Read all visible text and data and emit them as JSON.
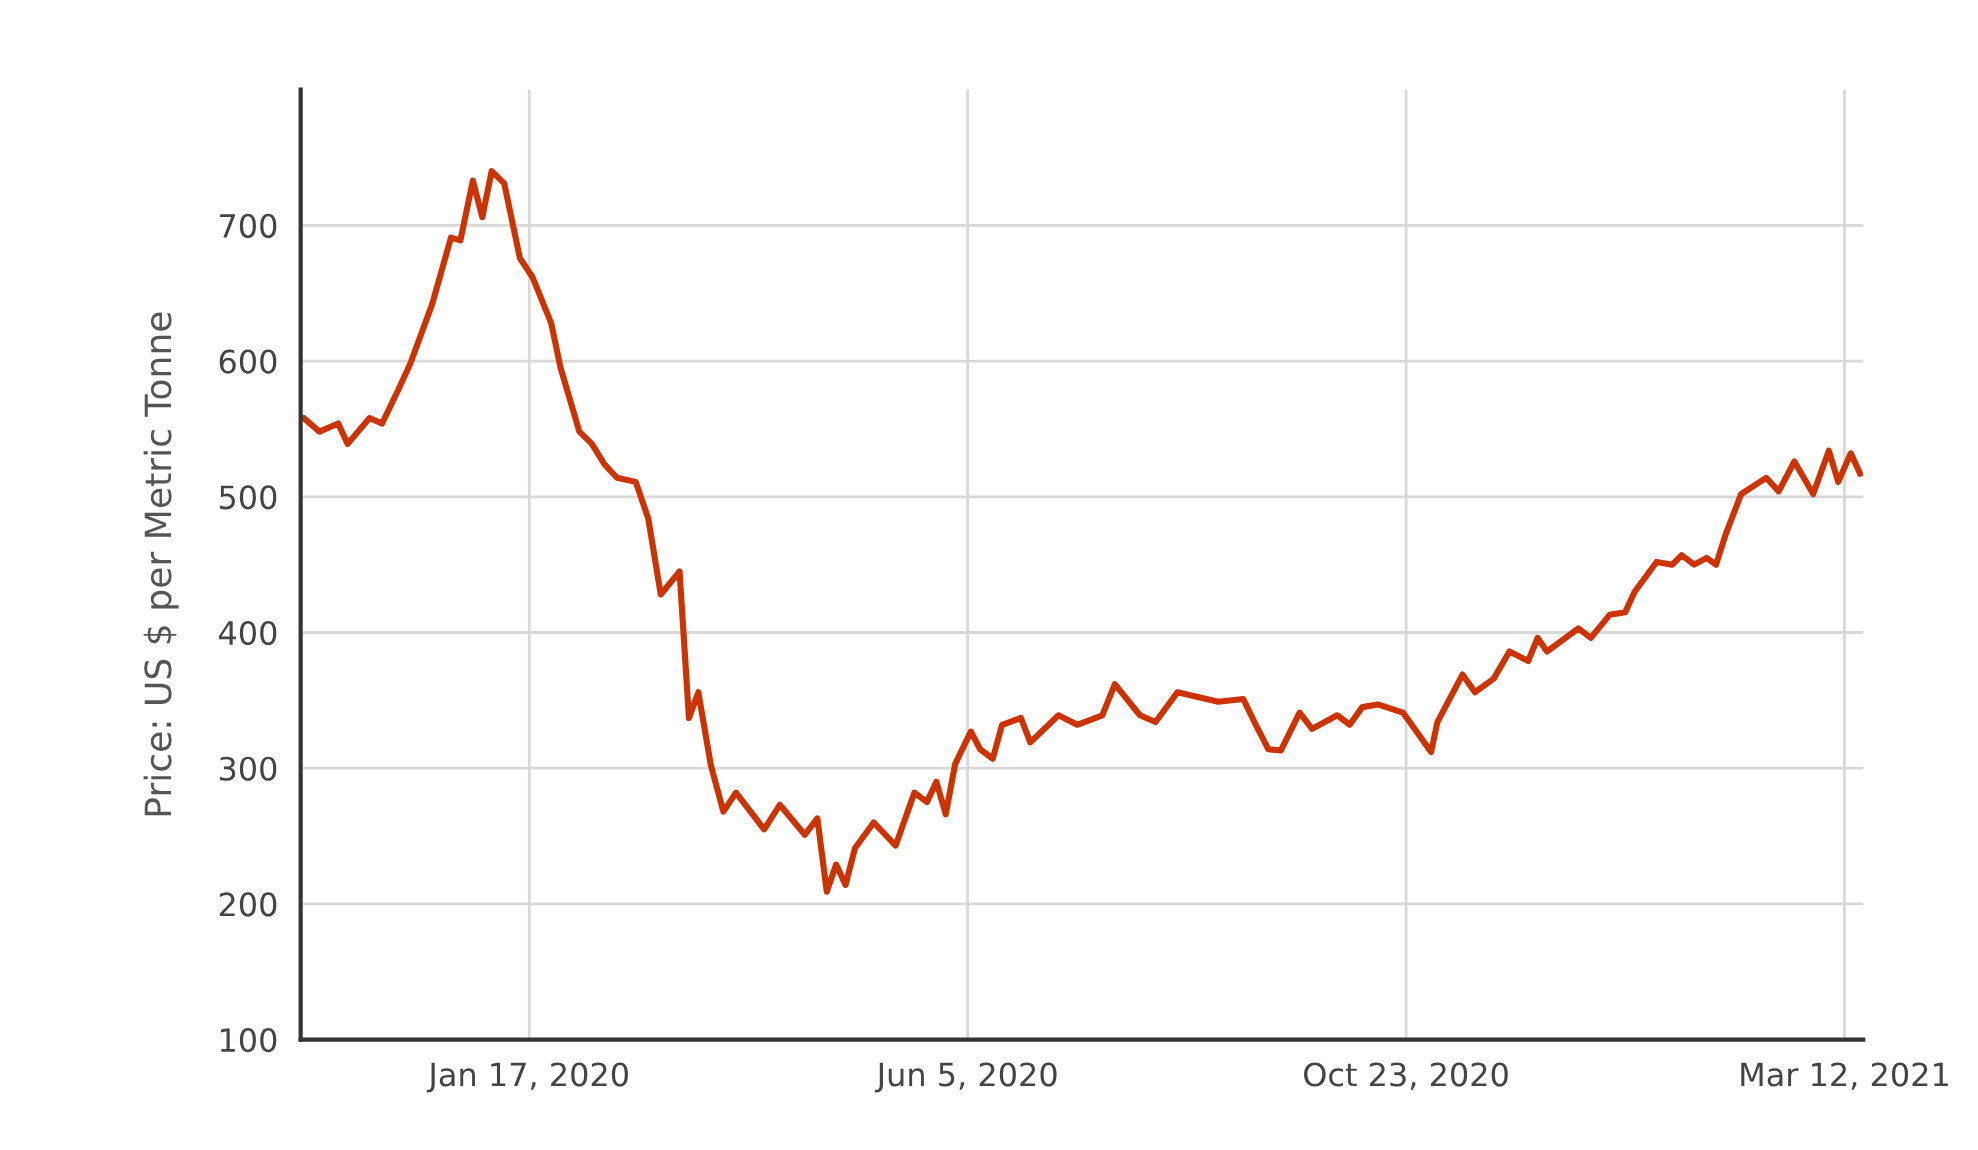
{
  "chart_data": {
    "type": "line",
    "ylabel": "Price: US $ per Metric Tonne",
    "x": [
      "2019-11-06",
      "2019-11-11",
      "2019-11-17",
      "2019-11-20",
      "2019-11-27",
      "2019-12-01",
      "2019-12-06",
      "2019-12-10",
      "2019-12-17",
      "2019-12-23",
      "2019-12-26",
      "2019-12-30",
      "2020-01-02",
      "2020-01-05",
      "2020-01-09",
      "2020-01-14",
      "2020-01-18",
      "2020-01-24",
      "2020-01-27",
      "2020-02-02",
      "2020-02-06",
      "2020-02-10",
      "2020-02-14",
      "2020-02-20",
      "2020-02-24",
      "2020-02-28",
      "2020-03-05",
      "2020-03-08",
      "2020-03-11",
      "2020-03-15",
      "2020-03-19",
      "2020-03-23",
      "2020-04-01",
      "2020-04-06",
      "2020-04-14",
      "2020-04-18",
      "2020-04-21",
      "2020-04-24",
      "2020-04-27",
      "2020-04-30",
      "2020-05-06",
      "2020-05-13",
      "2020-05-19",
      "2020-05-23",
      "2020-05-26",
      "2020-05-29",
      "2020-06-01",
      "2020-06-06",
      "2020-06-09",
      "2020-06-13",
      "2020-06-16",
      "2020-06-22",
      "2020-06-25",
      "2020-07-04",
      "2020-07-10",
      "2020-07-18",
      "2020-07-22",
      "2020-07-30",
      "2020-08-04",
      "2020-08-11",
      "2020-08-24",
      "2020-09-01",
      "2020-09-05",
      "2020-09-09",
      "2020-09-13",
      "2020-09-19",
      "2020-09-23",
      "2020-10-01",
      "2020-10-05",
      "2020-10-09",
      "2020-10-14",
      "2020-10-22",
      "2020-10-31",
      "2020-11-02",
      "2020-11-10",
      "2020-11-14",
      "2020-11-20",
      "2020-11-25",
      "2020-12-01",
      "2020-12-04",
      "2020-12-07",
      "2020-12-17",
      "2020-12-21",
      "2020-12-27",
      "2021-01-01",
      "2021-01-04",
      "2021-01-11",
      "2021-01-16",
      "2021-01-19",
      "2021-01-23",
      "2021-01-27",
      "2021-01-30",
      "2021-02-02",
      "2021-02-07",
      "2021-02-15",
      "2021-02-19",
      "2021-02-24",
      "2021-03-02",
      "2021-03-07",
      "2021-03-10",
      "2021-03-14",
      "2021-03-17"
    ],
    "series": [
      {
        "color": "#cc3300",
        "values": [
          558,
          548,
          554,
          539,
          558,
          554,
          578,
          598,
          642,
          691,
          689,
          733,
          706,
          740,
          731,
          676,
          662,
          628,
          595,
          548,
          539,
          524,
          514,
          511,
          484,
          428,
          445,
          337,
          356,
          302,
          268,
          282,
          255,
          273,
          251,
          263,
          209,
          229,
          214,
          241,
          260,
          243,
          282,
          275,
          290,
          266,
          303,
          327,
          314,
          307,
          332,
          337,
          319,
          339,
          332,
          339,
          362,
          339,
          334,
          356,
          349,
          351,
          332,
          314,
          313,
          341,
          329,
          339,
          332,
          345,
          347,
          341,
          312,
          334,
          369,
          356,
          366,
          386,
          379,
          396,
          386,
          403,
          396,
          413,
          415,
          430,
          452,
          450,
          457,
          450,
          455,
          450,
          472,
          502,
          514,
          504,
          526,
          502,
          534,
          511,
          532,
          517
        ]
      }
    ],
    "xlim": [
      "2019-11-05",
      "2021-03-18"
    ],
    "xticks": [
      {
        "value": "2020-01-17",
        "label": "Jan 17, 2020"
      },
      {
        "value": "2020-06-05",
        "label": "Jun 5, 2020"
      },
      {
        "value": "2020-10-23",
        "label": "Oct 23, 2020"
      },
      {
        "value": "2021-03-12",
        "label": "Mar 12, 2021"
      }
    ],
    "ylim": [
      100,
      800
    ],
    "yticks": [
      100,
      200,
      300,
      400,
      500,
      600,
      700
    ],
    "grid": true,
    "marker": "none",
    "line_style": "solid"
  }
}
